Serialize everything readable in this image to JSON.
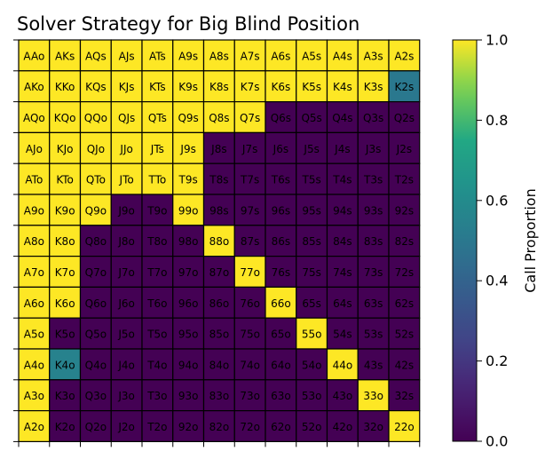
{
  "chart_data": {
    "type": "heatmap",
    "title": "Solver Strategy for Big Blind Position",
    "xlabel": "",
    "ylabel": "",
    "colorbar": {
      "label": "Call Proportion",
      "range": [
        0.0,
        1.0
      ],
      "ticks": [
        "0.0",
        "0.2",
        "0.4",
        "0.6",
        "0.8",
        "1.0"
      ],
      "colormap": "viridis"
    },
    "ranks": [
      "A",
      "K",
      "Q",
      "J",
      "T",
      "9",
      "8",
      "7",
      "6",
      "5",
      "4",
      "3",
      "2"
    ],
    "rows": [
      {
        "labels": [
          "AAo",
          "AKs",
          "AQs",
          "AJs",
          "ATs",
          "A9s",
          "A8s",
          "A7s",
          "A6s",
          "A5s",
          "A4s",
          "A3s",
          "A2s"
        ],
        "values": [
          1,
          1,
          1,
          1,
          1,
          1,
          1,
          1,
          1,
          1,
          1,
          1,
          1
        ]
      },
      {
        "labels": [
          "AKo",
          "KKo",
          "KQs",
          "KJs",
          "KTs",
          "K9s",
          "K8s",
          "K7s",
          "K6s",
          "K5s",
          "K4s",
          "K3s",
          "K2s"
        ],
        "values": [
          1,
          1,
          1,
          1,
          1,
          1,
          1,
          1,
          1,
          1,
          1,
          1,
          0.5
        ]
      },
      {
        "labels": [
          "AQo",
          "KQo",
          "QQo",
          "QJs",
          "QTs",
          "Q9s",
          "Q8s",
          "Q7s",
          "Q6s",
          "Q5s",
          "Q4s",
          "Q3s",
          "Q2s"
        ],
        "values": [
          1,
          1,
          1,
          1,
          1,
          1,
          1,
          1,
          0,
          0,
          0,
          0,
          0
        ]
      },
      {
        "labels": [
          "AJo",
          "KJo",
          "QJo",
          "JJo",
          "JTs",
          "J9s",
          "J8s",
          "J7s",
          "J6s",
          "J5s",
          "J4s",
          "J3s",
          "J2s"
        ],
        "values": [
          1,
          1,
          1,
          1,
          1,
          1,
          0,
          0,
          0,
          0,
          0,
          0,
          0
        ]
      },
      {
        "labels": [
          "ATo",
          "KTo",
          "QTo",
          "JTo",
          "TTo",
          "T9s",
          "T8s",
          "T7s",
          "T6s",
          "T5s",
          "T4s",
          "T3s",
          "T2s"
        ],
        "values": [
          1,
          1,
          1,
          1,
          1,
          1,
          0,
          0,
          0,
          0,
          0,
          0,
          0
        ]
      },
      {
        "labels": [
          "A9o",
          "K9o",
          "Q9o",
          "J9o",
          "T9o",
          "99o",
          "98s",
          "97s",
          "96s",
          "95s",
          "94s",
          "93s",
          "92s"
        ],
        "values": [
          1,
          1,
          1,
          0,
          0,
          1,
          0,
          0,
          0,
          0,
          0,
          0,
          0
        ]
      },
      {
        "labels": [
          "A8o",
          "K8o",
          "Q8o",
          "J8o",
          "T8o",
          "98o",
          "88o",
          "87s",
          "86s",
          "85s",
          "84s",
          "83s",
          "82s"
        ],
        "values": [
          1,
          1,
          0,
          0,
          0,
          0,
          1,
          0,
          0,
          0,
          0,
          0,
          0
        ]
      },
      {
        "labels": [
          "A7o",
          "K7o",
          "Q7o",
          "J7o",
          "T7o",
          "97o",
          "87o",
          "77o",
          "76s",
          "75s",
          "74s",
          "73s",
          "72s"
        ],
        "values": [
          1,
          1,
          0,
          0,
          0,
          0,
          0,
          1,
          0,
          0,
          0,
          0,
          0
        ]
      },
      {
        "labels": [
          "A6o",
          "K6o",
          "Q6o",
          "J6o",
          "T6o",
          "96o",
          "86o",
          "76o",
          "66o",
          "65s",
          "64s",
          "63s",
          "62s"
        ],
        "values": [
          1,
          1,
          0,
          0,
          0,
          0,
          0,
          0,
          1,
          0,
          0,
          0,
          0
        ]
      },
      {
        "labels": [
          "A5o",
          "K5o",
          "Q5o",
          "J5o",
          "T5o",
          "95o",
          "85o",
          "75o",
          "65o",
          "55o",
          "54s",
          "53s",
          "52s"
        ],
        "values": [
          1,
          0,
          0,
          0,
          0,
          0,
          0,
          0,
          0,
          1,
          0,
          0,
          0
        ]
      },
      {
        "labels": [
          "A4o",
          "K4o",
          "Q4o",
          "J4o",
          "T4o",
          "94o",
          "84o",
          "74o",
          "64o",
          "54o",
          "44o",
          "43s",
          "42s"
        ],
        "values": [
          1,
          0.55,
          0,
          0,
          0,
          0,
          0,
          0,
          0,
          0,
          1,
          0,
          0
        ]
      },
      {
        "labels": [
          "A3o",
          "K3o",
          "Q3o",
          "J3o",
          "T3o",
          "93o",
          "83o",
          "73o",
          "63o",
          "53o",
          "43o",
          "33o",
          "32s"
        ],
        "values": [
          1,
          0,
          0,
          0,
          0,
          0,
          0,
          0,
          0,
          0,
          0,
          1,
          0
        ]
      },
      {
        "labels": [
          "A2o",
          "K2o",
          "Q2o",
          "J2o",
          "T2o",
          "92o",
          "82o",
          "72o",
          "62o",
          "52o",
          "42o",
          "32o",
          "22o"
        ],
        "values": [
          1,
          0,
          0,
          0,
          0,
          0,
          0,
          0,
          0,
          0,
          0,
          0,
          1
        ]
      }
    ]
  }
}
